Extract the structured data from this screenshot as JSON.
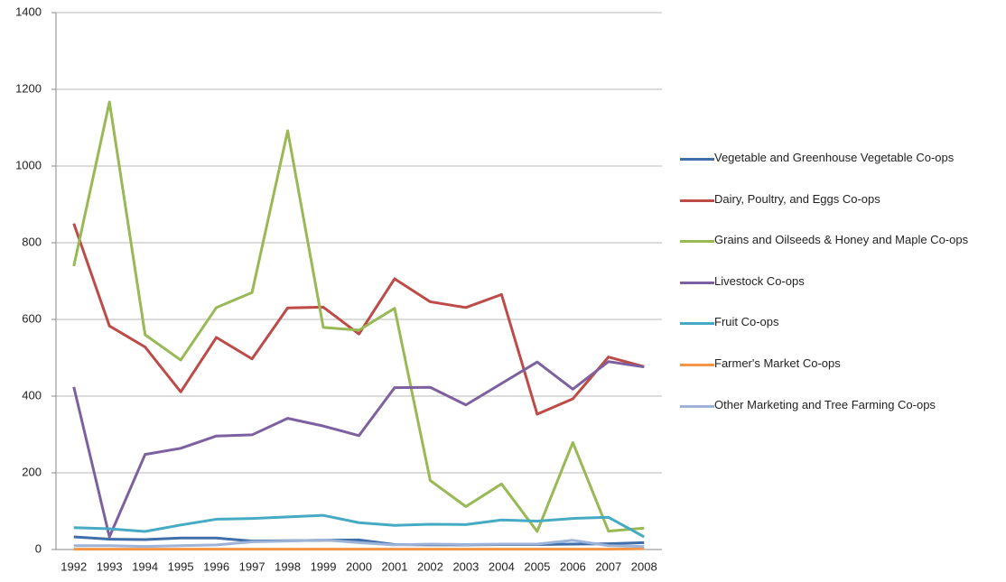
{
  "chart_data": {
    "type": "line",
    "categories": [
      "1992",
      "1993",
      "1994",
      "1995",
      "1996",
      "1997",
      "1998",
      "1999",
      "2000",
      "2001",
      "2002",
      "2003",
      "2004",
      "2005",
      "2006",
      "2007",
      "2008"
    ],
    "series": [
      {
        "name": "Vegetable and Greenhouse Vegetable Co-ops",
        "color": "#3f6ea8",
        "values": [
          33,
          27,
          26,
          30,
          30,
          22,
          23,
          24,
          25,
          13,
          12,
          12,
          13,
          13,
          14,
          15,
          18
        ]
      },
      {
        "name": "Dairy, Poultry, and Eggs Co-ops",
        "color": "#be4b48",
        "values": [
          850,
          583,
          528,
          411,
          553,
          497,
          630,
          632,
          562,
          706,
          646,
          631,
          665,
          353,
          393,
          502,
          477
        ]
      },
      {
        "name": "Grains and Oilseeds & Honey and Maple Co-ops",
        "color": "#98b954",
        "values": [
          739,
          1167,
          560,
          494,
          631,
          670,
          1092,
          579,
          572,
          629,
          180,
          112,
          171,
          47,
          279,
          48,
          56
        ]
      },
      {
        "name": "Livestock Co-ops",
        "color": "#7d60a0",
        "values": [
          424,
          33,
          248,
          264,
          296,
          299,
          342,
          322,
          297,
          422,
          423,
          377,
          433,
          489,
          418,
          490,
          476
        ]
      },
      {
        "name": "Fruit Co-ops",
        "color": "#46aac5",
        "values": [
          57,
          54,
          47,
          64,
          79,
          81,
          85,
          89,
          70,
          63,
          66,
          65,
          77,
          74,
          81,
          84,
          33
        ]
      },
      {
        "name": "Farmer's Market Co-ops",
        "color": "#f69546",
        "values": [
          1,
          1,
          1,
          1,
          1,
          1,
          1,
          1,
          1,
          1,
          1,
          1,
          1,
          1,
          1,
          1,
          2
        ]
      },
      {
        "name": "Other Marketing and Tree Farming Co-ops",
        "color": "#9db3d8",
        "values": [
          10,
          10,
          8,
          10,
          12,
          20,
          22,
          25,
          18,
          12,
          14,
          13,
          14,
          14,
          24,
          10,
          8
        ]
      }
    ],
    "ylim": [
      0,
      1400
    ],
    "yticks": [
      0,
      200,
      400,
      600,
      800,
      1000,
      1200,
      1400
    ],
    "grid": true
  }
}
